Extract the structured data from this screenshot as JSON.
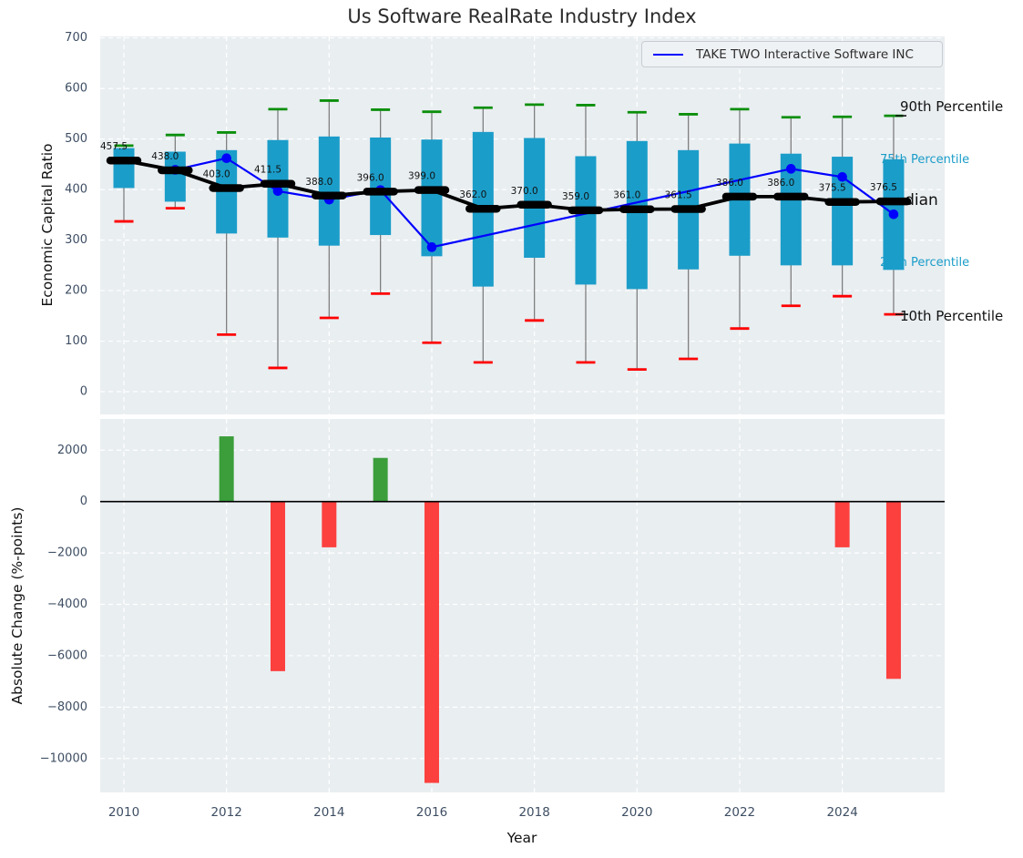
{
  "colors": {
    "axes_background": "#E9EEF1",
    "grid": "#FFFFFF",
    "tick_label": "#3E4E63",
    "box_fill": "#1B9DC9",
    "whisker": "#7F7F7F",
    "p90_cap": "#0B8F0B",
    "p10_cap": "#FF0000",
    "median_line": "#000000",
    "series_blue": "#0000FF",
    "bar_positive": "#3B9E3B",
    "bar_negative": "#FB403E",
    "percentile_text_cyan": "#1B9DC9",
    "percentile_text_dark": "#111111"
  },
  "chart_data": [
    {
      "type": "box-percentile-timeseries",
      "title": "Us Software RealRate Industry Index",
      "ylabel": "Economic Capital Ratio",
      "xlabel": "",
      "ylim": [
        -45,
        703
      ],
      "grid": true,
      "yticks": [
        0,
        100,
        200,
        300,
        400,
        500,
        600,
        700
      ],
      "xticks": [
        2010,
        2012,
        2014,
        2016,
        2018,
        2020,
        2022,
        2024
      ],
      "years": [
        2010,
        2011,
        2012,
        2013,
        2014,
        2015,
        2016,
        2017,
        2018,
        2019,
        2020,
        2021,
        2022,
        2023,
        2024,
        2025
      ],
      "p90": [
        487,
        508,
        513,
        559,
        576,
        558,
        554,
        562,
        568,
        567,
        553,
        549,
        559,
        543,
        544,
        546
      ],
      "p75": [
        482,
        475,
        478,
        498,
        505,
        503,
        499,
        514,
        502,
        466,
        496,
        478,
        491,
        471,
        465,
        460
      ],
      "median": [
        457.5,
        438,
        403,
        411.5,
        388,
        396,
        399,
        362,
        370,
        359,
        361,
        361.5,
        386,
        386,
        375.5,
        376.5
      ],
      "median_labels": [
        "457.5",
        "438.0",
        "403.0",
        "411.5",
        "388.0",
        "396.0",
        "399.0",
        "362.0",
        "370.0",
        "359.0",
        "361.0",
        "361.5",
        "386.0",
        "386.0",
        "375.5",
        "376.5"
      ],
      "p25": [
        403,
        376,
        313,
        305,
        289,
        310,
        268,
        208,
        265,
        212,
        203,
        242,
        269,
        250,
        250,
        241
      ],
      "p10": [
        337,
        363,
        113,
        47,
        146,
        194,
        97,
        58,
        141,
        58,
        44,
        65,
        125,
        170,
        189,
        153
      ],
      "take_two": {
        "name": "TAKE TWO Interactive Software INC",
        "years": [
          2011,
          2012,
          2013,
          2014,
          2015,
          2016,
          2023,
          2024,
          2025
        ],
        "values": [
          439,
          462,
          397,
          380,
          399,
          286,
          441,
          425,
          351
        ]
      },
      "right_labels": {
        "p90": "90th Percentile",
        "p75": "75th Percentile",
        "median": "Median",
        "p25": "25th Percentile",
        "p10": "10th Percentile"
      },
      "legend_position": "upper right"
    },
    {
      "type": "bar",
      "title": "",
      "ylabel": "Absolute Change (%-points)",
      "xlabel": "Year",
      "ylim": [
        -11320,
        3215
      ],
      "grid": true,
      "yticks": [
        2000,
        0,
        -2000,
        -4000,
        -6000,
        -8000,
        -10000
      ],
      "xticks": [
        2010,
        2012,
        2014,
        2016,
        2018,
        2020,
        2022,
        2024
      ],
      "categories": [
        2012,
        2013,
        2014,
        2015,
        2016,
        2024,
        2025
      ],
      "values": [
        2540,
        -6600,
        -1780,
        1700,
        -10950,
        -1780,
        -6900
      ],
      "bar_colors": [
        "green",
        "red",
        "red",
        "green",
        "red",
        "red",
        "red"
      ],
      "zero_line": 0
    }
  ]
}
